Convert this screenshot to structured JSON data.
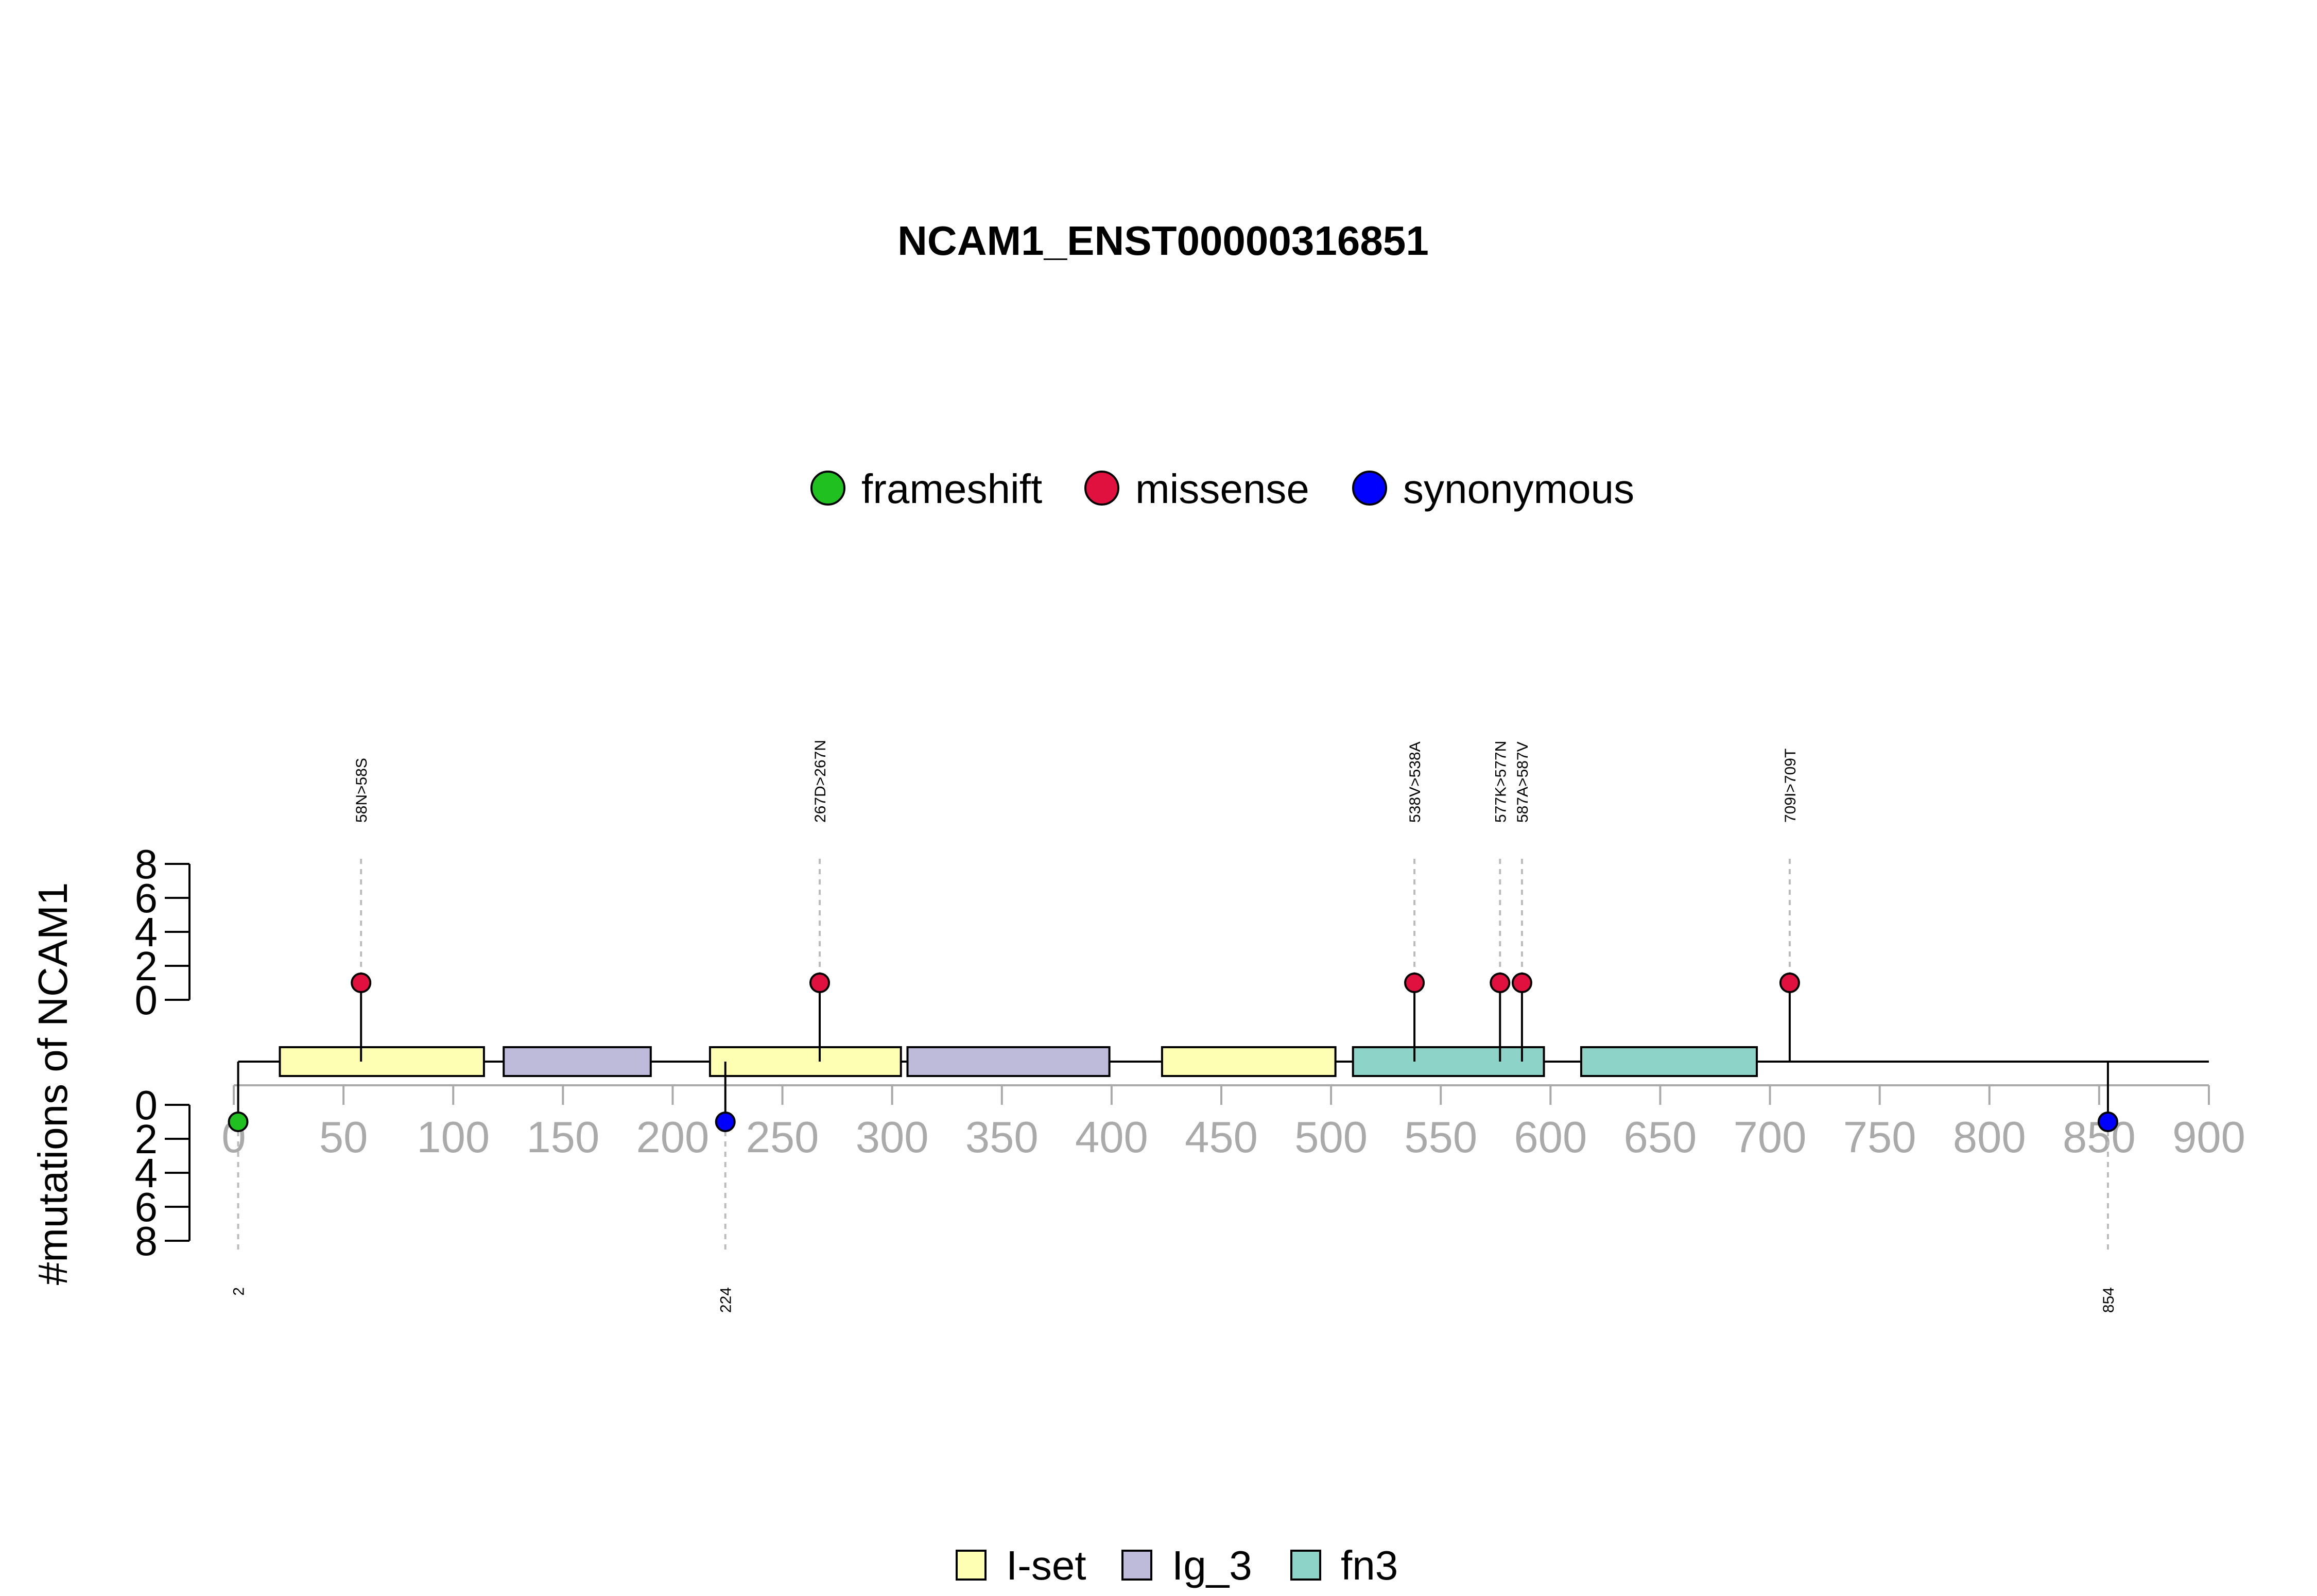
{
  "chart_data": {
    "type": "lollipop",
    "title": "NCAM1_ENST00000316851",
    "ylabel": "#mutations of NCAM1",
    "xlim": [
      0,
      900
    ],
    "x_ticks": [
      0,
      50,
      100,
      150,
      200,
      250,
      300,
      350,
      400,
      450,
      500,
      550,
      600,
      650,
      700,
      750,
      800,
      850,
      900
    ],
    "y_ticks_upper": [
      0,
      2,
      4,
      6,
      8
    ],
    "y_ticks_lower": [
      0,
      2,
      4,
      6,
      8
    ],
    "mutation_legend": [
      {
        "label": "frameshift",
        "color": "#1fc01f"
      },
      {
        "label": "missense",
        "color": "#e0103f"
      },
      {
        "label": "synonymous",
        "color": "#0000ff"
      }
    ],
    "domain_legend": [
      {
        "label": "I-set",
        "color": "#ffffb3"
      },
      {
        "label": "Ig_3",
        "color": "#bebada"
      },
      {
        "label": "fn3",
        "color": "#8dd3c7"
      }
    ],
    "domains": [
      {
        "name": "I-set",
        "start": 21,
        "end": 114
      },
      {
        "name": "Ig_3",
        "start": 123,
        "end": 190
      },
      {
        "name": "I-set",
        "start": 217,
        "end": 304
      },
      {
        "name": "Ig_3",
        "start": 307,
        "end": 399
      },
      {
        "name": "I-set",
        "start": 423,
        "end": 502
      },
      {
        "name": "fn3",
        "start": 510,
        "end": 597
      },
      {
        "name": "fn3",
        "start": 614,
        "end": 694
      }
    ],
    "mutations_upper": [
      {
        "pos": 58,
        "count": 1,
        "type": "missense",
        "label": "58N>58S"
      },
      {
        "pos": 267,
        "count": 1,
        "type": "missense",
        "label": "267D>267N"
      },
      {
        "pos": 538,
        "count": 1,
        "type": "missense",
        "label": "538V>538A"
      },
      {
        "pos": 577,
        "count": 1,
        "type": "missense",
        "label": "577K>577N"
      },
      {
        "pos": 587,
        "count": 1,
        "type": "missense",
        "label": "587A>587V"
      },
      {
        "pos": 709,
        "count": 1,
        "type": "missense",
        "label": "709I>709T"
      }
    ],
    "mutations_lower": [
      {
        "pos": 2,
        "count": 1,
        "type": "frameshift",
        "label": "2"
      },
      {
        "pos": 224,
        "count": 1,
        "type": "synonymous",
        "label": "224"
      },
      {
        "pos": 854,
        "count": 1,
        "type": "synonymous",
        "label": "854"
      }
    ]
  }
}
